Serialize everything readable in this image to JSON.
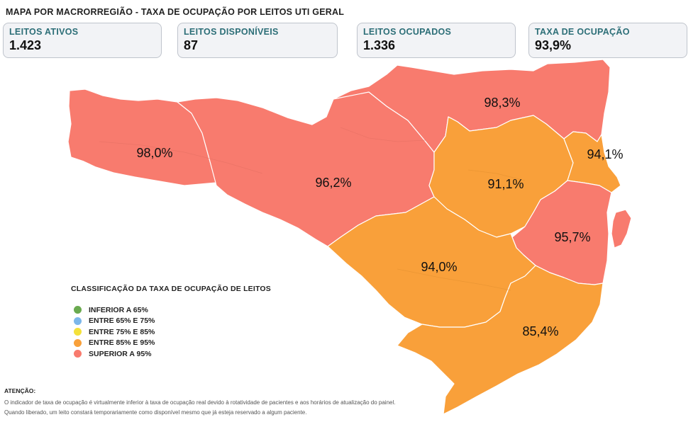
{
  "title": "MAPA POR MACRORREGIÃO - TAXA DE OCUPAÇÃO POR LEITOS UTI GERAL",
  "kpis": [
    {
      "label": "LEITOS ATIVOS",
      "value": "1.423"
    },
    {
      "label": "LEITOS DISPONÍVEIS",
      "value": "87"
    },
    {
      "label": "LEITOS OCUPADOS",
      "value": "1.336"
    },
    {
      "label": "TAXA DE OCUPAÇÃO",
      "value": "93,9%"
    }
  ],
  "colors": {
    "above_95": "#f87b6e",
    "between_85_95": "#f9a03a",
    "below_65": "#6aaa4f",
    "between_65_75": "#7cb7ea",
    "between_75_85": "#f4e13a",
    "kpi_label": "#2c6e77"
  },
  "regions": [
    {
      "id": "r1",
      "value": "98,0%",
      "class": "above_95"
    },
    {
      "id": "r2",
      "value": "96,2%",
      "class": "above_95"
    },
    {
      "id": "r3",
      "value": "98,3%",
      "class": "above_95"
    },
    {
      "id": "r4",
      "value": "91,1%",
      "class": "between_85_95"
    },
    {
      "id": "r5",
      "value": "94,1%",
      "class": "between_85_95"
    },
    {
      "id": "r6",
      "value": "95,7%",
      "class": "above_95"
    },
    {
      "id": "r7",
      "value": "94,0%",
      "class": "between_85_95"
    },
    {
      "id": "r8",
      "value": "85,4%",
      "class": "between_85_95"
    }
  ],
  "legend": {
    "title": "CLASSIFICAÇÃO DA TAXA DE OCUPAÇÃO DE LEITOS",
    "items": [
      {
        "label": "INFERIOR A 65%",
        "color": "#6aaa4f"
      },
      {
        "label": "ENTRE 65% E 75%",
        "color": "#7cb7ea"
      },
      {
        "label": "ENTRE 75% E 85%",
        "color": "#f4e13a"
      },
      {
        "label": "ENTRE 85% E 95%",
        "color": "#f9a03a"
      },
      {
        "label": "SUPERIOR A 95%",
        "color": "#f87b6e"
      }
    ]
  },
  "notice": {
    "title": "ATENÇÃO:",
    "lines": [
      "O indicador de taxa de ocupação é virtualmente inferior à taxa de ocupação real devido à rotatividade de pacientes e aos horários de atualização do painel.",
      "Quando liberado, um leito constará temporariamente como disponível mesmo que já esteja reservado a algum paciente."
    ]
  }
}
